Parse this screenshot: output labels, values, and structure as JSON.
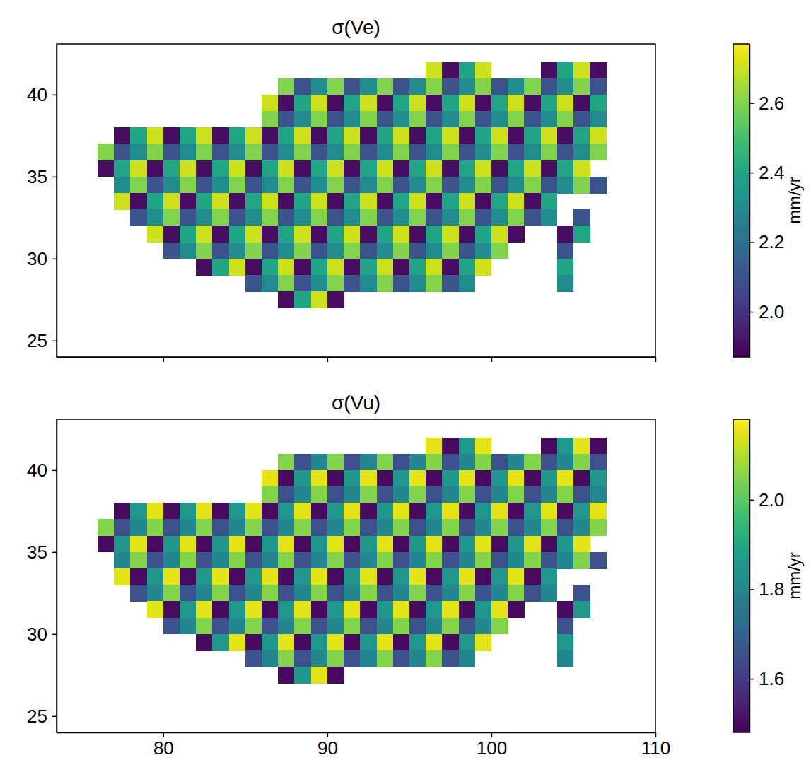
{
  "chart_data": [
    {
      "type": "heatmap",
      "title": "σ(Ve)",
      "x": [
        76.5,
        77.5,
        78.5,
        79.5,
        80.5,
        81.5,
        82.5,
        83.5,
        84.5,
        85.5,
        86.5,
        87.5,
        88.5,
        89.5,
        90.5,
        91.5,
        92.5,
        93.5,
        94.5,
        95.5,
        96.5,
        97.5,
        98.5,
        99.5,
        100.5,
        101.5,
        102.5,
        103.5,
        104.5,
        105.5,
        106.5
      ],
      "y": [
        41.5,
        40.5,
        39.5,
        38.5,
        37.5,
        36.5,
        35.5,
        34.5,
        33.5,
        32.5,
        31.5,
        30.5,
        29.5,
        28.5,
        27.5
      ],
      "values": [
        [
          null,
          null,
          null,
          null,
          null,
          null,
          null,
          null,
          null,
          null,
          null,
          null,
          null,
          null,
          null,
          null,
          null,
          null,
          null,
          null,
          2.7,
          1.9,
          2.4,
          2.7,
          null,
          null,
          null,
          1.9,
          2.4,
          2.7,
          1.9
        ],
        [
          null,
          null,
          null,
          null,
          null,
          null,
          null,
          null,
          null,
          null,
          null,
          2.6,
          2.1,
          2.3,
          2.6,
          2.1,
          2.3,
          2.6,
          2.1,
          2.3,
          2.6,
          2.1,
          2.3,
          2.6,
          2.1,
          2.3,
          2.6,
          2.1,
          2.3,
          2.6,
          2.1
        ],
        [
          null,
          null,
          null,
          null,
          null,
          null,
          null,
          null,
          null,
          null,
          2.7,
          1.9,
          2.4,
          2.7,
          1.9,
          2.4,
          2.7,
          1.9,
          2.4,
          2.7,
          1.9,
          2.4,
          2.7,
          1.9,
          2.4,
          2.7,
          1.9,
          2.4,
          2.7,
          1.9,
          2.4
        ],
        [
          null,
          null,
          null,
          null,
          null,
          null,
          null,
          null,
          null,
          null,
          2.6,
          2.1,
          2.3,
          2.6,
          2.1,
          2.3,
          2.6,
          2.1,
          2.3,
          2.6,
          2.1,
          2.3,
          2.6,
          2.1,
          2.3,
          2.6,
          2.1,
          2.3,
          2.6,
          2.1,
          2.3
        ],
        [
          null,
          1.9,
          2.4,
          2.7,
          1.9,
          2.4,
          2.7,
          1.9,
          2.4,
          2.7,
          1.9,
          2.4,
          2.7,
          1.9,
          2.4,
          2.7,
          1.9,
          2.4,
          2.7,
          1.9,
          2.4,
          2.7,
          1.9,
          2.4,
          2.7,
          1.9,
          2.4,
          2.7,
          1.9,
          2.4,
          2.7
        ],
        [
          2.6,
          2.1,
          2.3,
          2.6,
          2.1,
          2.3,
          2.6,
          2.1,
          2.3,
          2.6,
          2.1,
          2.3,
          2.6,
          2.1,
          2.3,
          2.6,
          2.1,
          2.3,
          2.6,
          2.1,
          2.3,
          2.6,
          2.1,
          2.3,
          2.6,
          2.1,
          2.3,
          2.6,
          2.1,
          2.3,
          2.6
        ],
        [
          1.9,
          2.4,
          2.7,
          1.9,
          2.4,
          2.7,
          1.9,
          2.4,
          2.7,
          1.9,
          2.4,
          2.7,
          1.9,
          2.4,
          2.7,
          1.9,
          2.4,
          2.7,
          1.9,
          2.4,
          2.7,
          1.9,
          2.4,
          2.7,
          1.9,
          2.4,
          2.7,
          1.9,
          2.4,
          2.7,
          null
        ],
        [
          null,
          2.3,
          2.6,
          2.1,
          2.3,
          2.6,
          2.1,
          2.3,
          2.6,
          2.1,
          2.3,
          2.6,
          2.1,
          2.3,
          2.6,
          2.1,
          2.3,
          2.6,
          2.1,
          2.3,
          2.6,
          2.1,
          2.3,
          2.6,
          2.1,
          2.3,
          2.6,
          2.1,
          2.3,
          2.6,
          2.1
        ],
        [
          null,
          2.7,
          1.9,
          2.4,
          2.7,
          1.9,
          2.4,
          2.7,
          1.9,
          2.4,
          2.7,
          1.9,
          2.4,
          2.7,
          1.9,
          2.4,
          2.7,
          1.9,
          2.4,
          2.7,
          1.9,
          2.4,
          2.7,
          1.9,
          2.4,
          2.7,
          1.9,
          2.4,
          null,
          null,
          null
        ],
        [
          null,
          null,
          2.1,
          2.3,
          2.6,
          2.1,
          2.3,
          2.6,
          2.1,
          2.3,
          2.6,
          2.1,
          2.3,
          2.6,
          2.1,
          2.3,
          2.6,
          2.1,
          2.3,
          2.6,
          2.1,
          2.3,
          2.6,
          2.1,
          2.3,
          2.6,
          2.1,
          2.3,
          null,
          2.1,
          null
        ],
        [
          null,
          null,
          null,
          2.7,
          1.9,
          2.4,
          2.7,
          1.9,
          2.4,
          2.7,
          1.9,
          2.4,
          2.7,
          1.9,
          2.4,
          2.7,
          1.9,
          2.4,
          2.7,
          1.9,
          2.4,
          2.7,
          1.9,
          2.4,
          2.7,
          1.9,
          null,
          null,
          1.9,
          2.4,
          null
        ],
        [
          null,
          null,
          null,
          null,
          2.1,
          2.3,
          2.6,
          2.1,
          2.3,
          2.6,
          2.1,
          2.3,
          2.6,
          2.1,
          2.3,
          2.6,
          2.1,
          2.3,
          2.6,
          2.1,
          2.3,
          2.6,
          2.1,
          2.3,
          2.6,
          null,
          null,
          null,
          2.1,
          null,
          null
        ],
        [
          null,
          null,
          null,
          null,
          null,
          null,
          1.9,
          2.4,
          2.7,
          1.9,
          2.4,
          2.7,
          1.9,
          2.4,
          2.7,
          1.9,
          2.4,
          2.7,
          1.9,
          2.4,
          2.7,
          1.9,
          2.4,
          2.7,
          null,
          null,
          null,
          null,
          2.4,
          null,
          null
        ],
        [
          null,
          null,
          null,
          null,
          null,
          null,
          null,
          null,
          null,
          2.1,
          2.3,
          2.6,
          2.1,
          2.3,
          2.6,
          2.1,
          2.3,
          2.6,
          2.1,
          2.3,
          2.6,
          2.1,
          2.3,
          null,
          null,
          null,
          null,
          null,
          2.3,
          null,
          null
        ],
        [
          null,
          null,
          null,
          null,
          null,
          null,
          null,
          null,
          null,
          null,
          null,
          1.9,
          2.4,
          2.7,
          1.9,
          null,
          null,
          null,
          null,
          null,
          null,
          null,
          null,
          null,
          null,
          null,
          null,
          null,
          null,
          null,
          null
        ]
      ],
      "xlim": [
        73.5,
        110
      ],
      "ylim": [
        24,
        43.1
      ],
      "xticks": [
        80,
        90,
        100,
        110
      ],
      "yticks": [
        25,
        30,
        35,
        40
      ],
      "tick_labels": "y",
      "color": "viridis",
      "colorbar_range": [
        1.87,
        2.77
      ],
      "colorbar_ticks": [
        {
          "value": 2,
          "label": "2.0"
        },
        2.2,
        2.4,
        2.6
      ],
      "colorbar_label": "mm/yr"
    },
    {
      "type": "heatmap",
      "title": "σ(Vu)",
      "x": [
        76.5,
        77.5,
        78.5,
        79.5,
        80.5,
        81.5,
        82.5,
        83.5,
        84.5,
        85.5,
        86.5,
        87.5,
        88.5,
        89.5,
        90.5,
        91.5,
        92.5,
        93.5,
        94.5,
        95.5,
        96.5,
        97.5,
        98.5,
        99.5,
        100.5,
        101.5,
        102.5,
        103.5,
        104.5,
        105.5,
        106.5
      ],
      "y": [
        41.5,
        40.5,
        39.5,
        38.5,
        37.5,
        36.5,
        35.5,
        34.5,
        33.5,
        32.5,
        31.5,
        30.5,
        29.5,
        28.5,
        27.5
      ],
      "values": [
        [
          null,
          null,
          null,
          null,
          null,
          null,
          null,
          null,
          null,
          null,
          null,
          null,
          null,
          null,
          null,
          null,
          null,
          null,
          null,
          null,
          2.15,
          1.5,
          1.85,
          2.15,
          null,
          null,
          null,
          1.5,
          1.85,
          2.15,
          1.5
        ],
        [
          null,
          null,
          null,
          null,
          null,
          null,
          null,
          null,
          null,
          null,
          null,
          2.05,
          1.65,
          1.8,
          2.05,
          1.65,
          1.8,
          2.05,
          1.65,
          1.8,
          2.05,
          1.65,
          1.8,
          2.05,
          1.65,
          1.8,
          2.05,
          1.65,
          1.8,
          2.05,
          1.65
        ],
        [
          null,
          null,
          null,
          null,
          null,
          null,
          null,
          null,
          null,
          null,
          2.15,
          1.5,
          1.85,
          2.15,
          1.5,
          1.85,
          2.15,
          1.5,
          1.85,
          2.15,
          1.5,
          1.85,
          2.15,
          1.5,
          1.85,
          2.15,
          1.5,
          1.85,
          2.15,
          1.5,
          1.85
        ],
        [
          null,
          null,
          null,
          null,
          null,
          null,
          null,
          null,
          null,
          null,
          2.05,
          1.65,
          1.8,
          2.05,
          1.65,
          1.8,
          2.05,
          1.65,
          1.8,
          2.05,
          1.65,
          1.8,
          2.05,
          1.65,
          1.8,
          2.05,
          1.65,
          1.8,
          2.05,
          1.65,
          1.8
        ],
        [
          null,
          1.5,
          1.85,
          2.15,
          1.5,
          1.85,
          2.15,
          1.5,
          1.85,
          2.15,
          1.5,
          1.85,
          2.15,
          1.5,
          1.85,
          2.15,
          1.5,
          1.85,
          2.15,
          1.5,
          1.85,
          2.15,
          1.5,
          1.85,
          2.15,
          1.5,
          1.85,
          2.15,
          1.5,
          1.85,
          2.15
        ],
        [
          2.05,
          1.65,
          1.8,
          2.05,
          1.65,
          1.8,
          2.05,
          1.65,
          1.8,
          2.05,
          1.65,
          1.8,
          2.05,
          1.65,
          1.8,
          2.05,
          1.65,
          1.8,
          2.05,
          1.65,
          1.8,
          2.05,
          1.65,
          1.8,
          2.05,
          1.65,
          1.8,
          2.05,
          1.65,
          1.8,
          2.05
        ],
        [
          1.5,
          1.85,
          2.15,
          1.5,
          1.85,
          2.15,
          1.5,
          1.85,
          2.15,
          1.5,
          1.85,
          2.15,
          1.5,
          1.85,
          2.15,
          1.5,
          1.85,
          2.15,
          1.5,
          1.85,
          2.15,
          1.5,
          1.85,
          2.15,
          1.5,
          1.85,
          2.15,
          1.5,
          1.85,
          2.15,
          null
        ],
        [
          null,
          1.8,
          2.05,
          1.65,
          1.8,
          2.05,
          1.65,
          1.8,
          2.05,
          1.65,
          1.8,
          2.05,
          1.65,
          1.8,
          2.05,
          1.65,
          1.8,
          2.05,
          1.65,
          1.8,
          2.05,
          1.65,
          1.8,
          2.05,
          1.65,
          1.8,
          2.05,
          1.65,
          1.8,
          2.05,
          1.65
        ],
        [
          null,
          2.15,
          1.5,
          1.85,
          2.15,
          1.5,
          1.85,
          2.15,
          1.5,
          1.85,
          2.15,
          1.5,
          1.85,
          2.15,
          1.5,
          1.85,
          2.15,
          1.5,
          1.85,
          2.15,
          1.5,
          1.85,
          2.15,
          1.5,
          1.85,
          2.15,
          1.5,
          1.85,
          null,
          null,
          null
        ],
        [
          null,
          null,
          1.65,
          1.8,
          2.05,
          1.65,
          1.8,
          2.05,
          1.65,
          1.8,
          2.05,
          1.65,
          1.8,
          2.05,
          1.65,
          1.8,
          2.05,
          1.65,
          1.8,
          2.05,
          1.65,
          1.8,
          2.05,
          1.65,
          1.8,
          2.05,
          1.65,
          1.8,
          null,
          1.65,
          null
        ],
        [
          null,
          null,
          null,
          2.15,
          1.5,
          1.85,
          2.15,
          1.5,
          1.85,
          2.15,
          1.5,
          1.85,
          2.15,
          1.5,
          1.85,
          2.15,
          1.5,
          1.85,
          2.15,
          1.5,
          1.85,
          2.15,
          1.5,
          1.85,
          2.15,
          1.5,
          null,
          null,
          1.5,
          1.85,
          null
        ],
        [
          null,
          null,
          null,
          null,
          1.65,
          1.8,
          2.05,
          1.65,
          1.8,
          2.05,
          1.65,
          1.8,
          2.05,
          1.65,
          1.8,
          2.05,
          1.65,
          1.8,
          2.05,
          1.65,
          1.8,
          2.05,
          1.65,
          1.8,
          2.05,
          null,
          null,
          null,
          1.65,
          null,
          null
        ],
        [
          null,
          null,
          null,
          null,
          null,
          null,
          1.5,
          1.85,
          2.15,
          1.5,
          1.85,
          2.15,
          1.5,
          1.85,
          2.15,
          1.5,
          1.85,
          2.15,
          1.5,
          1.85,
          2.15,
          1.5,
          1.85,
          2.15,
          null,
          null,
          null,
          null,
          1.85,
          null,
          null
        ],
        [
          null,
          null,
          null,
          null,
          null,
          null,
          null,
          null,
          null,
          1.65,
          1.8,
          2.05,
          1.65,
          1.8,
          2.05,
          1.65,
          1.8,
          2.05,
          1.65,
          1.8,
          2.05,
          1.65,
          1.8,
          null,
          null,
          null,
          null,
          null,
          1.8,
          null,
          null
        ],
        [
          null,
          null,
          null,
          null,
          null,
          null,
          null,
          null,
          null,
          null,
          null,
          1.5,
          1.85,
          2.15,
          1.5,
          null,
          null,
          null,
          null,
          null,
          null,
          null,
          null,
          null,
          null,
          null,
          null,
          null,
          null,
          null,
          null
        ]
      ],
      "xlim": [
        73.5,
        110
      ],
      "ylim": [
        24,
        43.1
      ],
      "xticks": [
        80,
        90,
        100,
        110
      ],
      "yticks": [
        25,
        30,
        35,
        40
      ],
      "color": "viridis",
      "colorbar_range": [
        1.48,
        2.18
      ],
      "colorbar_ticks": [
        1.6,
        1.8,
        {
          "value": 2,
          "label": "2.0"
        }
      ],
      "colorbar_label": "mm/yr"
    }
  ]
}
